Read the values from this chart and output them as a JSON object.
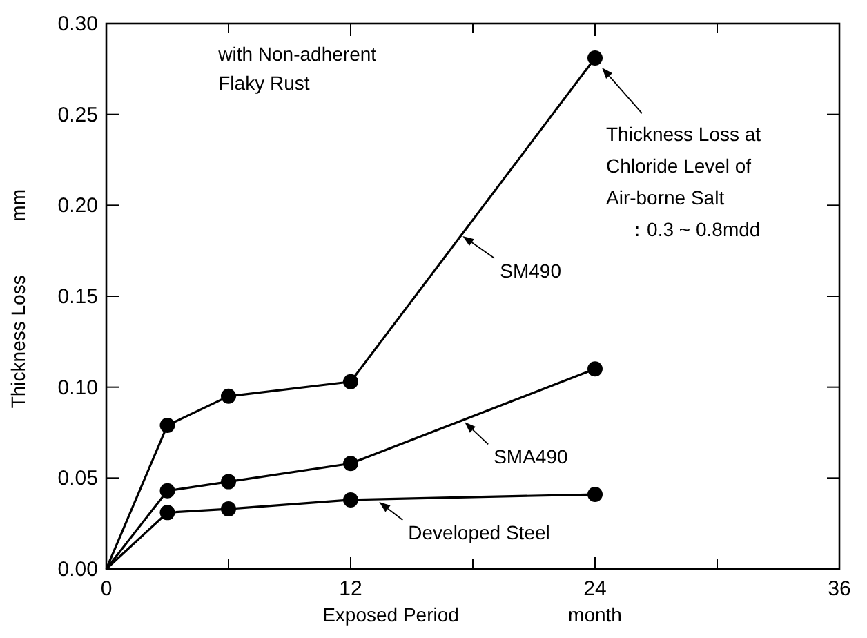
{
  "chart_data": {
    "type": "line",
    "xlabel": "Exposed Period",
    "ylabel": "Thickness Loss",
    "x": [
      0,
      3,
      6,
      12,
      24
    ],
    "series": [
      {
        "name": "SM490",
        "color": "#000000",
        "values": [
          0,
          0.079,
          0.095,
          0.103,
          0.281
        ]
      },
      {
        "name": "SMA490",
        "color": "#000000",
        "values": [
          0,
          0.043,
          0.048,
          0.058,
          0.11
        ]
      },
      {
        "name": "Developed Steel",
        "color": "#000000",
        "values": [
          0,
          0.031,
          0.033,
          0.038,
          0.041
        ]
      }
    ],
    "xlim": [
      0,
      36
    ],
    "xticks": [
      0,
      {
        "value": 6,
        "label": null
      },
      12,
      {
        "value": 18,
        "label": null
      },
      24,
      {
        "value": 30,
        "label": null
      },
      36
    ],
    "ylim": [
      0,
      0.3
    ],
    "yticks": [
      {
        "value": 0,
        "label": "0.00"
      },
      0.05,
      {
        "value": 0.1,
        "label": "0.10"
      },
      0.15,
      {
        "value": 0.2,
        "label": "0.20"
      },
      0.25,
      {
        "value": 0.3,
        "label": "0.30"
      }
    ],
    "marker": "circle",
    "line_style": "solid",
    "grid": false,
    "legend": "right",
    "annotations": [
      "with Non-adherent\nFlaky Rust",
      "Thickness Loss at\nChloride Level of\nAir-borne Salt\n    ：0.3 ~ 0.8mdd",
      "month",
      "mm"
    ]
  }
}
